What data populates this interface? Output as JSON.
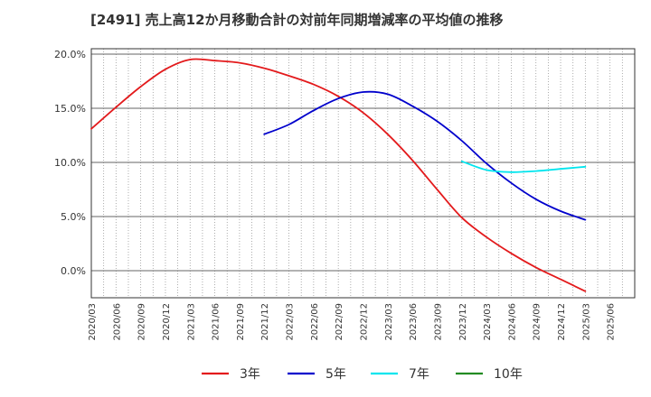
{
  "chart_data": {
    "type": "line",
    "title": "[2491]  売上高12か月移動合計の対前年同期増減率の平均値の推移",
    "xlabel": "",
    "ylabel": "",
    "categories": [
      "2020/03",
      "2020/06",
      "2020/09",
      "2020/12",
      "2021/03",
      "2021/06",
      "2021/09",
      "2021/12",
      "2022/03",
      "2022/06",
      "2022/09",
      "2022/12",
      "2023/03",
      "2023/06",
      "2023/09",
      "2023/12",
      "2024/03",
      "2024/06",
      "2024/09",
      "2024/12",
      "2025/03",
      "2025/06"
    ],
    "ylim": [
      -2.5,
      20.5
    ],
    "yticks": [
      0,
      5,
      10,
      15,
      20
    ],
    "ytick_labels": [
      "0.0%",
      "5.0%",
      "10.0%",
      "15.0%",
      "20.0%"
    ],
    "grid": true,
    "legend_position": "bottom",
    "series": [
      {
        "name": "3年",
        "color": "#e31a1c",
        "values": [
          13.1,
          15.1,
          17.0,
          18.6,
          19.5,
          19.4,
          19.2,
          18.7,
          18.0,
          17.2,
          16.1,
          14.6,
          12.6,
          10.2,
          7.5,
          4.9,
          3.1,
          1.6,
          0.3,
          -0.8,
          -1.9,
          null
        ]
      },
      {
        "name": "5年",
        "color": "#0000cc",
        "values": [
          null,
          null,
          null,
          null,
          null,
          null,
          null,
          12.6,
          13.5,
          14.8,
          15.9,
          16.5,
          16.3,
          15.2,
          13.8,
          12.0,
          9.9,
          8.1,
          6.6,
          5.5,
          4.7,
          null
        ]
      },
      {
        "name": "7年",
        "color": "#00e5ee",
        "values": [
          null,
          null,
          null,
          null,
          null,
          null,
          null,
          null,
          null,
          null,
          null,
          null,
          null,
          null,
          null,
          10.1,
          9.3,
          9.1,
          9.2,
          9.4,
          9.6,
          null
        ]
      },
      {
        "name": "10年",
        "color": "#228b22",
        "values": [
          null,
          null,
          null,
          null,
          null,
          null,
          null,
          null,
          null,
          null,
          null,
          null,
          null,
          null,
          null,
          null,
          null,
          null,
          null,
          null,
          null,
          null
        ]
      }
    ]
  }
}
